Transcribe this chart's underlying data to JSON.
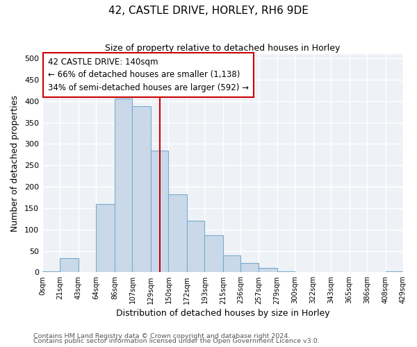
{
  "title": "42, CASTLE DRIVE, HORLEY, RH6 9DE",
  "subtitle": "Size of property relative to detached houses in Horley",
  "xlabel": "Distribution of detached houses by size in Horley",
  "ylabel": "Number of detached properties",
  "bar_edges": [
    0,
    21,
    43,
    64,
    86,
    107,
    129,
    150,
    172,
    193,
    215,
    236,
    257,
    279,
    300,
    322,
    343,
    365,
    386,
    408,
    429
  ],
  "bar_heights": [
    2,
    33,
    0,
    160,
    407,
    388,
    285,
    183,
    120,
    87,
    40,
    22,
    11,
    2,
    0,
    0,
    0,
    0,
    0,
    2
  ],
  "bar_color": "#c9d9ea",
  "bar_edgecolor": "#7aaacb",
  "vline_x": 140,
  "vline_color": "#cc0000",
  "annotation_title": "42 CASTLE DRIVE: 140sqm",
  "annotation_line1": "← 66% of detached houses are smaller (1,138)",
  "annotation_line2": "34% of semi-detached houses are larger (592) →",
  "annotation_box_edgecolor": "#cc0000",
  "tick_labels": [
    "0sqm",
    "21sqm",
    "43sqm",
    "64sqm",
    "86sqm",
    "107sqm",
    "129sqm",
    "150sqm",
    "172sqm",
    "193sqm",
    "215sqm",
    "236sqm",
    "257sqm",
    "279sqm",
    "300sqm",
    "322sqm",
    "343sqm",
    "365sqm",
    "386sqm",
    "408sqm",
    "429sqm"
  ],
  "ylim": [
    0,
    510
  ],
  "yticks": [
    0,
    50,
    100,
    150,
    200,
    250,
    300,
    350,
    400,
    450,
    500
  ],
  "footer_line1": "Contains HM Land Registry data © Crown copyright and database right 2024.",
  "footer_line2": "Contains public sector information licensed under the Open Government Licence v3.0.",
  "bg_color": "#ffffff",
  "plot_bg_color": "#eef2f7",
  "grid_color": "#ffffff",
  "figsize": [
    6.0,
    5.0
  ],
  "dpi": 100
}
